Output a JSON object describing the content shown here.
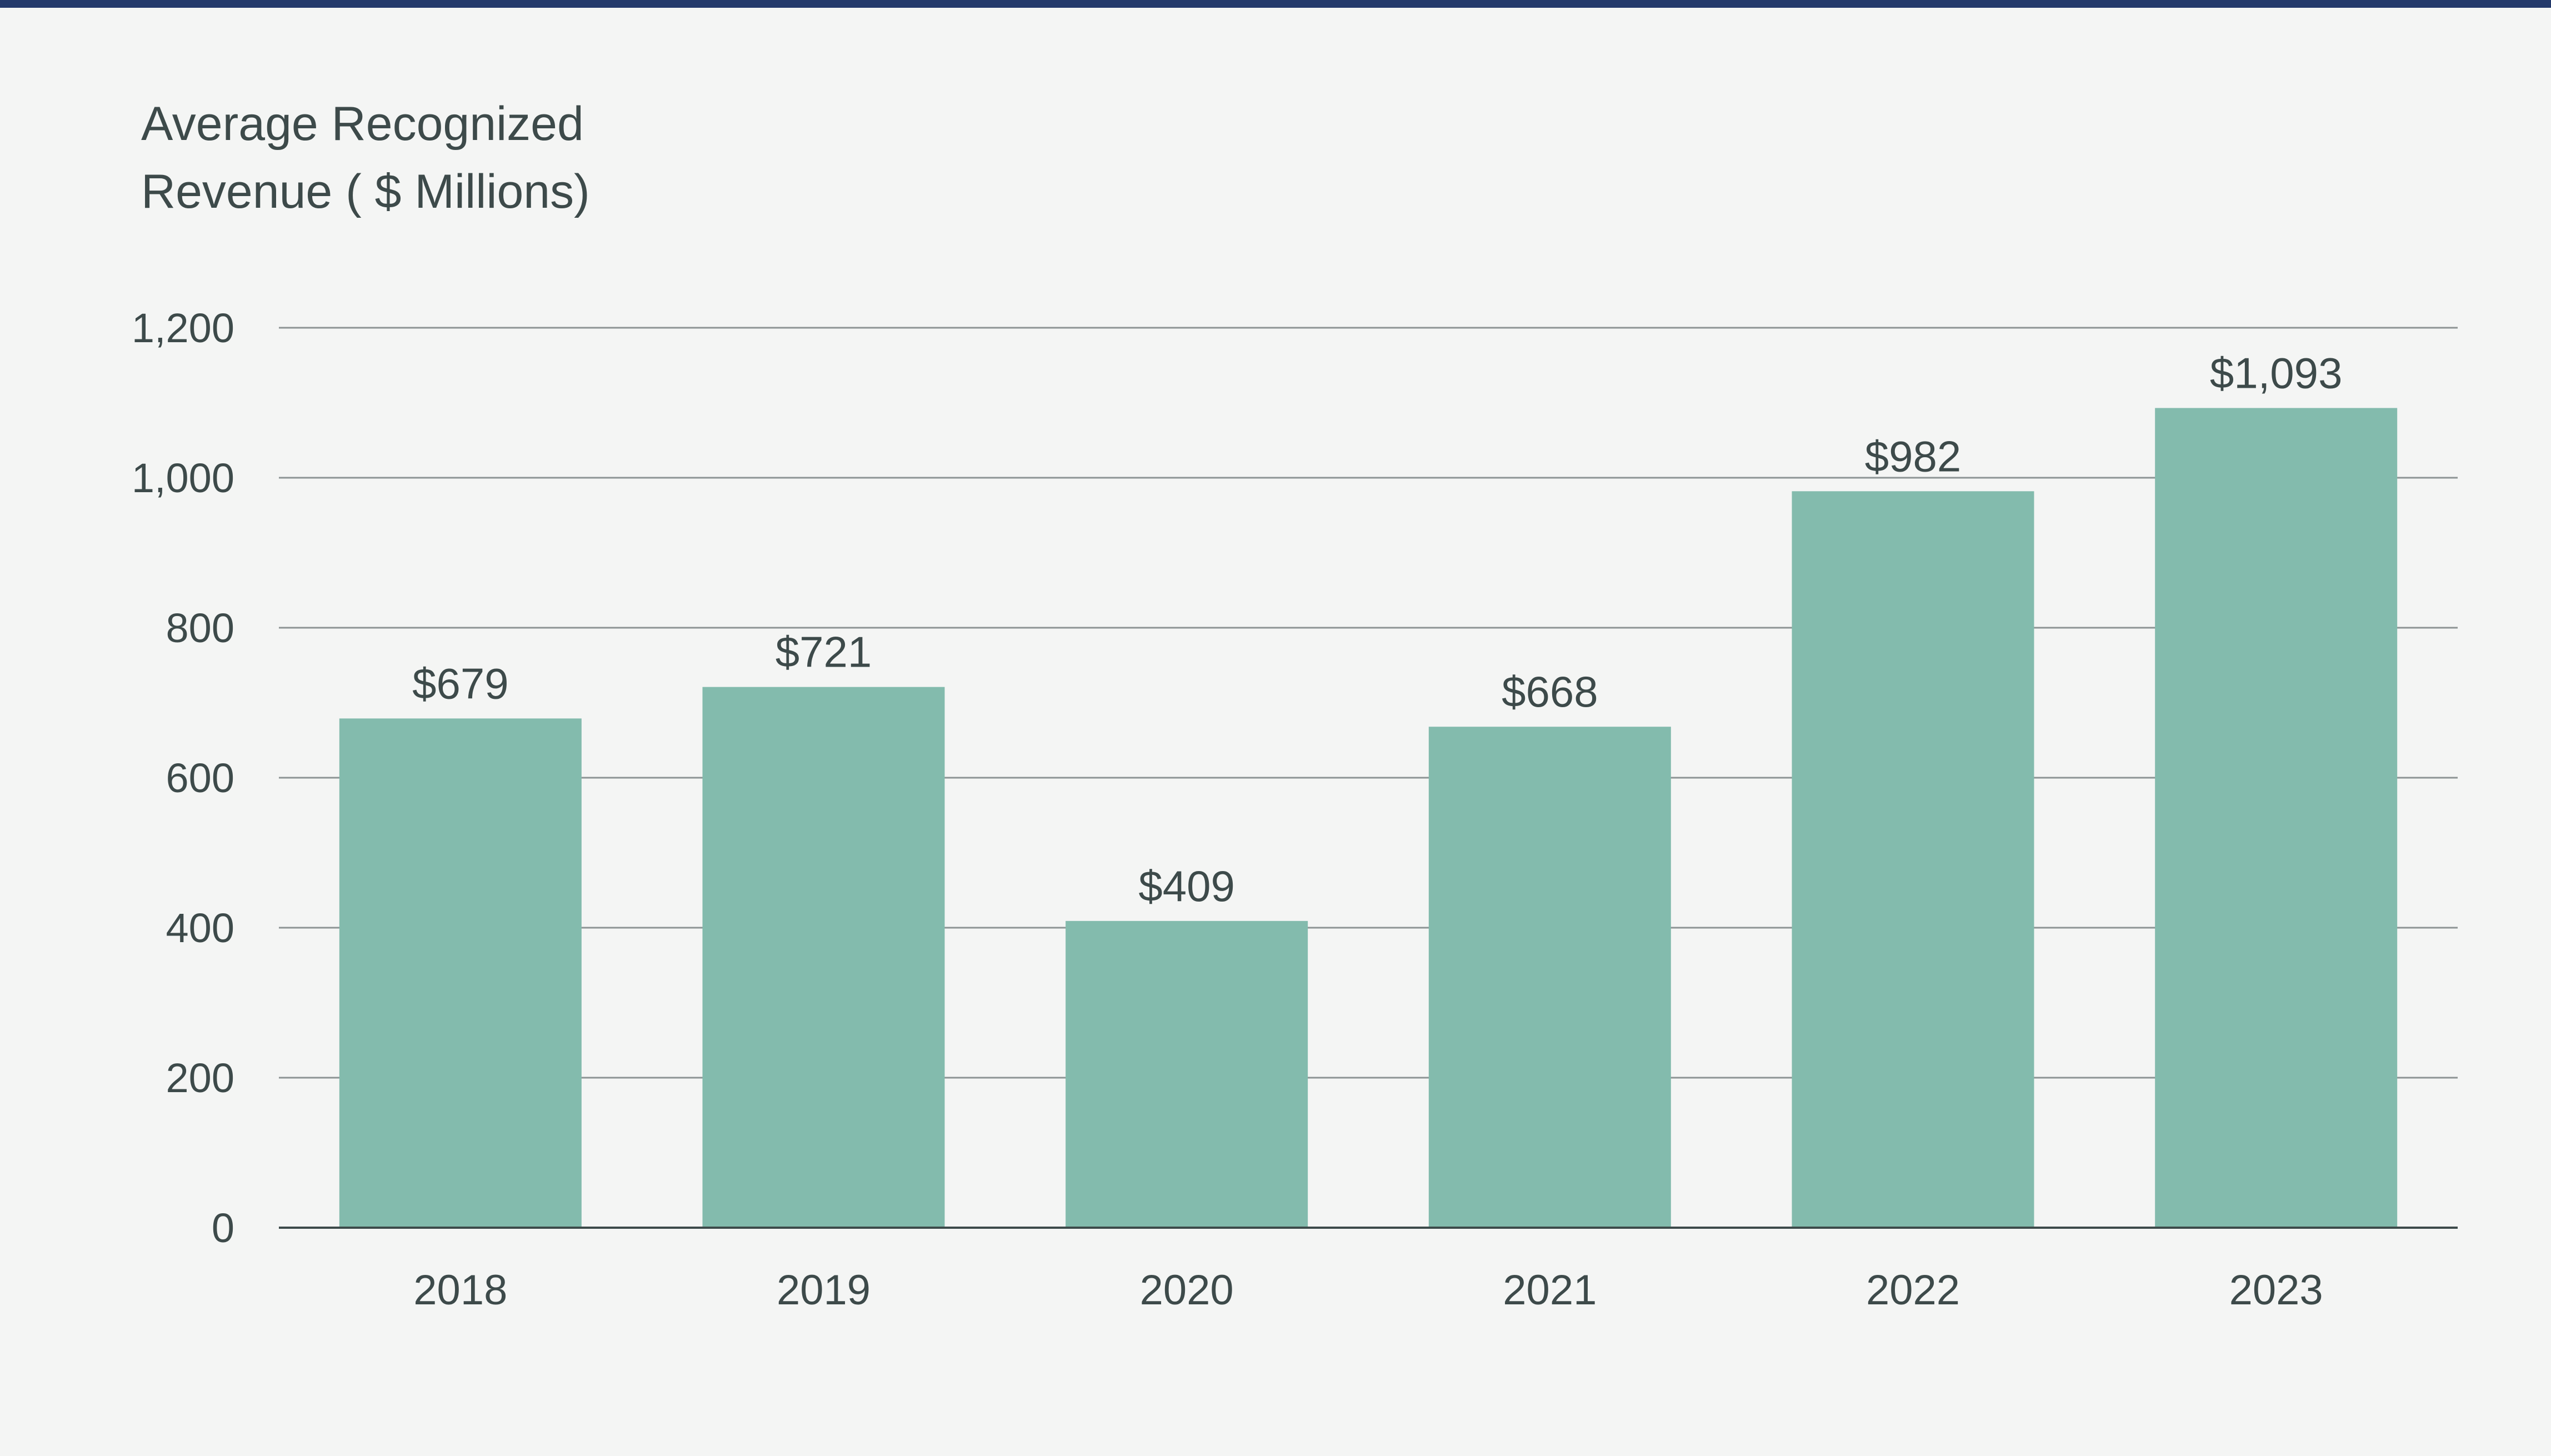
{
  "chart_data": {
    "type": "bar",
    "title": "Average Recognized Revenue ( $ Millions)",
    "xlabel": "",
    "ylabel": "",
    "categories": [
      "2018",
      "2019",
      "2020",
      "2021",
      "2022",
      "2023"
    ],
    "values": [
      679,
      721,
      409,
      668,
      982,
      1093
    ],
    "value_labels": [
      "$679",
      "$721",
      "$409",
      "$668",
      "$982",
      "$1,093"
    ],
    "ylim": [
      0,
      1200
    ],
    "yticks": [
      0,
      200,
      400,
      600,
      800,
      1000,
      1200
    ],
    "ytick_labels": [
      "0",
      "200",
      "400",
      "600",
      "800",
      "1,000",
      "1,200"
    ],
    "grid": true,
    "legend": "none"
  },
  "colors": {
    "bar": "#83bbad",
    "gridline": "#8d9494",
    "axis": "#3d4a4a",
    "text": "#3d4a4a",
    "top_rule": "#243a6b",
    "background": "#f4f5f4"
  }
}
